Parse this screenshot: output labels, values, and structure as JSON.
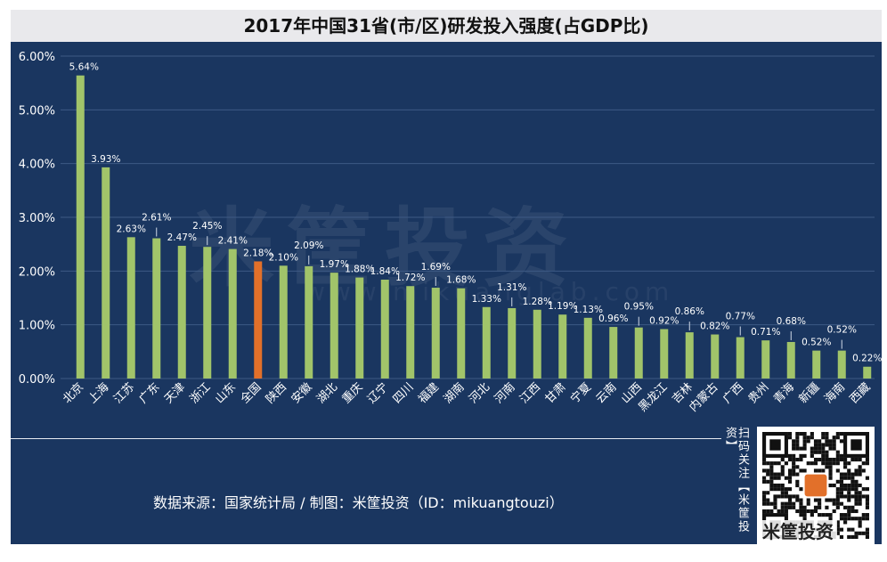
{
  "chart_data": {
    "type": "bar",
    "title": "2017年中国31省(市/区)研发投入强度(占GDP比)",
    "ylabel": "",
    "xlabel": "",
    "ylim": [
      0,
      6
    ],
    "yticks": [
      "0.00%",
      "1.00%",
      "2.00%",
      "3.00%",
      "4.00%",
      "5.00%",
      "6.00%"
    ],
    "categories": [
      "北京",
      "上海",
      "江苏",
      "广东",
      "天津",
      "浙江",
      "山东",
      "全国",
      "陕西",
      "安徽",
      "湖北",
      "重庆",
      "辽宁",
      "四川",
      "福建",
      "湖南",
      "河北",
      "河南",
      "江西",
      "甘肃",
      "宁夏",
      "云南",
      "山西",
      "黑龙江",
      "吉林",
      "内蒙古",
      "广西",
      "贵州",
      "青海",
      "新疆",
      "海南",
      "西藏"
    ],
    "values": [
      5.64,
      3.93,
      2.63,
      2.61,
      2.47,
      2.45,
      2.41,
      2.18,
      2.1,
      2.09,
      1.97,
      1.88,
      1.84,
      1.72,
      1.69,
      1.68,
      1.33,
      1.31,
      1.28,
      1.19,
      1.13,
      0.96,
      0.95,
      0.92,
      0.86,
      0.82,
      0.77,
      0.71,
      0.68,
      0.52,
      0.52,
      0.22
    ],
    "labels": [
      "5.64%",
      "3.93%",
      "2.63%",
      "2.61%",
      "2.47%",
      "2.45%",
      "2.41%",
      "2.18%",
      "2.10%",
      "2.09%",
      "1.97%",
      "1.88%",
      "1.84%",
      "1.72%",
      "1.69%",
      "1.68%",
      "1.33%",
      "1.31%",
      "1.28%",
      "1.19%",
      "1.13%",
      "0.96%",
      "0.95%",
      "0.92%",
      "0.86%",
      "0.82%",
      "0.77%",
      "0.71%",
      "0.68%",
      "0.52%",
      "0.52%",
      "0.22%"
    ],
    "highlight_category": "全国",
    "colors": {
      "bar": "#a1c46a",
      "highlight": "#e2702a",
      "grid": "#3d5a84",
      "background": "#1a3660"
    }
  },
  "source_text": "数据来源：国家统计局 / 制图：米筐投资（ID：mikuangtouzi）",
  "watermark_text": "米筐投资",
  "watermark_url": "www.mikuanglab.com",
  "side_text": "扫码关注【米筐投资】",
  "qr_logo_text": "米筐投资"
}
